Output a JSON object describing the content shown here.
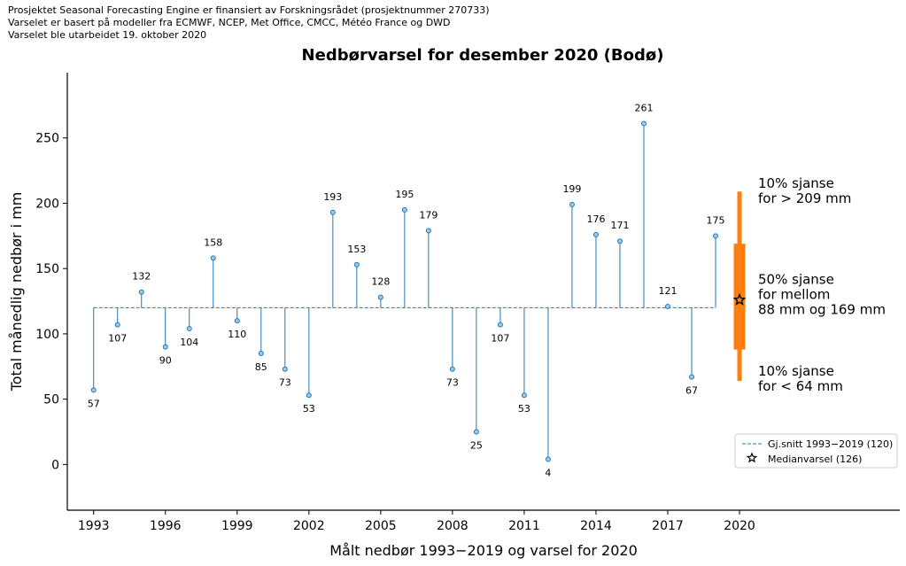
{
  "header": {
    "lines": [
      "Prosjektet Seasonal Forecasting Engine er finansiert av Forskningsrådet (prosjektnummer 270733)",
      "Varselet er basert på modeller fra ECMWF, NCEP, Met Office, CMCC, Météo France og DWD",
      "Varselet ble utarbeidet 19. oktober 2020"
    ]
  },
  "chart_data": {
    "type": "stem",
    "title": "Nedbørvarsel for desember 2020 (Bodø)",
    "xlabel": "Målt nedbør 1993−2019 og varsel for 2020",
    "ylabel": "Total månedlig nedbør i mm",
    "xlim": [
      1991.9,
      2026.7
    ],
    "ylim": [
      -35,
      300
    ],
    "xticks": [
      1993,
      1996,
      1999,
      2002,
      2005,
      2008,
      2011,
      2014,
      2017,
      2020
    ],
    "yticks": [
      0,
      50,
      100,
      150,
      200,
      250
    ],
    "baseline": 120,
    "years": [
      1993,
      1994,
      1995,
      1996,
      1997,
      1998,
      1999,
      2000,
      2001,
      2002,
      2003,
      2004,
      2005,
      2006,
      2007,
      2008,
      2009,
      2010,
      2011,
      2012,
      2013,
      2014,
      2015,
      2016,
      2017,
      2018,
      2019
    ],
    "values": [
      57,
      107,
      132,
      90,
      104,
      158,
      110,
      85,
      73,
      53,
      193,
      153,
      128,
      195,
      179,
      73,
      25,
      107,
      53,
      4,
      199,
      176,
      171,
      261,
      121,
      67,
      175
    ],
    "forecast": {
      "year": 2020,
      "median": 126,
      "p10": 64,
      "p90": 209,
      "p25": 88,
      "p75": 169,
      "color": "#ff7f0e",
      "labels": {
        "upper": [
          "10% sjanse",
          "for > 209 mm"
        ],
        "middle": [
          "50% sjanse",
          "for mellom",
          "88 mm og 169 mm"
        ],
        "lower": [
          "10% sjanse",
          "for < 64 mm"
        ]
      }
    },
    "series_color": "#1f77b4",
    "legend": {
      "position": "lower-right",
      "entries": [
        {
          "label": "Gj.snitt 1993−2019 (120)",
          "marker": "dashed-line"
        },
        {
          "label": "Medianvarsel (126)",
          "marker": "star"
        }
      ]
    },
    "grid": false
  }
}
